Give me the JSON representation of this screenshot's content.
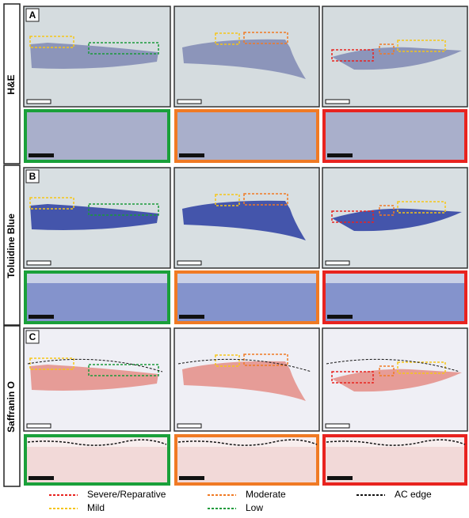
{
  "rows": [
    {
      "letter": "A",
      "stain": "H&E"
    },
    {
      "letter": "B",
      "stain": "Toluidine Blue"
    },
    {
      "letter": "C",
      "stain": "Saffranin O"
    }
  ],
  "legend": [
    "Severe/Reparative",
    "Moderate",
    "AC edge",
    "Mild",
    "Low"
  ]
}
